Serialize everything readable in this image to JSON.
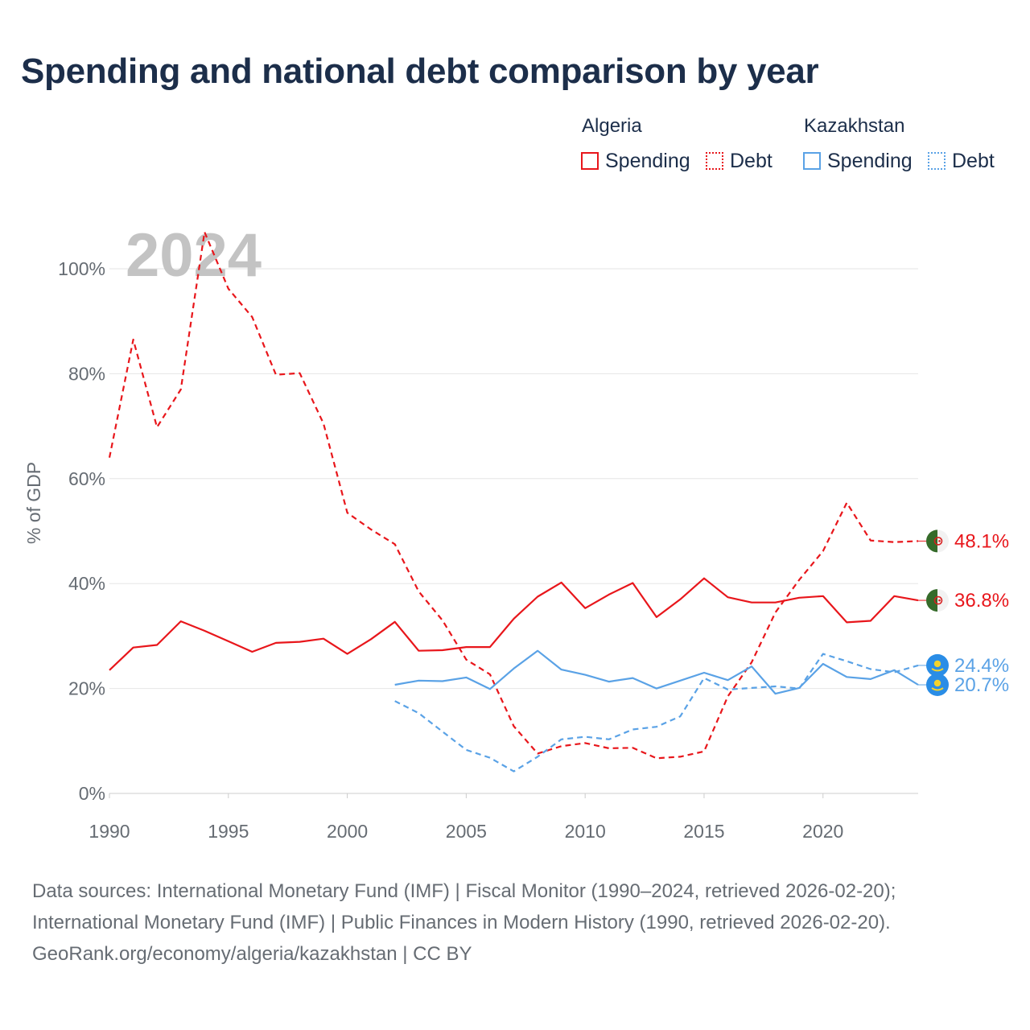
{
  "title": "Spending and national debt comparison by year",
  "legend": {
    "groups": [
      {
        "country": "Algeria",
        "color": "#e8161b",
        "items": [
          {
            "label": "Spending",
            "style": "solid"
          },
          {
            "label": "Debt",
            "style": "dotted"
          }
        ]
      },
      {
        "country": "Kazakhstan",
        "color": "#5aa2e6",
        "items": [
          {
            "label": "Spending",
            "style": "solid"
          },
          {
            "label": "Debt",
            "style": "dotted"
          }
        ]
      }
    ]
  },
  "year_label": "2024",
  "footer": {
    "line1": "Data sources: International Monetary Fund (IMF) | Fiscal Monitor (1990–2024, retrieved 2026-02-20);",
    "line2": "International Monetary Fund (IMF) | Public Finances in Modern History (1990, retrieved 2026-02-20).",
    "line3": "GeoRank.org/economy/algeria/kazakhstan | CC BY"
  },
  "chart_data": {
    "type": "line",
    "title": "Spending and national debt comparison by year",
    "xlabel": "",
    "ylabel": "% of GDP",
    "xlim": [
      1990,
      2024
    ],
    "ylim": [
      0,
      108
    ],
    "x_ticks": [
      1990,
      1995,
      2000,
      2005,
      2010,
      2015,
      2020
    ],
    "y_ticks": [
      0,
      20,
      40,
      60,
      80,
      100
    ],
    "y_tick_labels": [
      "0%",
      "20%",
      "40%",
      "60%",
      "80%",
      "100%"
    ],
    "grid": true,
    "series": [
      {
        "name": "Algeria Spending",
        "country": "Algeria",
        "metric": "Spending",
        "color": "#e8161b",
        "dash": "solid",
        "start_year": 1990,
        "values": [
          23.5,
          27.8,
          28.3,
          32.8,
          31.0,
          29.0,
          27.0,
          28.7,
          28.9,
          29.5,
          26.6,
          29.4,
          32.7,
          27.2,
          27.3,
          27.9,
          27.9,
          33.3,
          37.5,
          40.2,
          35.3,
          37.9,
          40.1,
          33.6,
          37.0,
          41.0,
          37.4,
          36.4,
          36.4,
          37.3,
          37.6,
          32.6,
          32.9,
          37.6,
          36.8
        ],
        "end_label": "36.8%"
      },
      {
        "name": "Algeria Debt",
        "country": "Algeria",
        "metric": "Debt",
        "color": "#e8161b",
        "dash": "dashed",
        "start_year": 1990,
        "values": [
          64.0,
          86.5,
          69.8,
          77.0,
          107.0,
          96.2,
          90.8,
          79.8,
          80.1,
          70.5,
          53.5,
          50.3,
          47.5,
          38.5,
          33.0,
          25.5,
          22.7,
          12.8,
          7.6,
          9.0,
          9.6,
          8.6,
          8.7,
          6.7,
          7.0,
          8.0,
          18.5,
          25.0,
          34.5,
          40.7,
          46.2,
          55.4,
          48.2,
          47.9,
          48.1
        ],
        "end_label": "48.1%"
      },
      {
        "name": "Kazakhstan Spending",
        "country": "Kazakhstan",
        "metric": "Spending",
        "color": "#5aa2e6",
        "dash": "solid",
        "start_year": 2002,
        "values": [
          20.7,
          21.5,
          21.4,
          22.1,
          19.9,
          23.8,
          27.2,
          23.6,
          22.6,
          21.3,
          22.0,
          20.0,
          21.5,
          23.0,
          21.6,
          24.2,
          19.0,
          20.1,
          24.7,
          22.2,
          21.8,
          23.5,
          20.7
        ],
        "end_label": "20.7%"
      },
      {
        "name": "Kazakhstan Debt",
        "country": "Kazakhstan",
        "metric": "Debt",
        "color": "#5aa2e6",
        "dash": "dashed",
        "start_year": 2002,
        "values": [
          17.6,
          15.3,
          11.8,
          8.3,
          6.8,
          4.2,
          7.0,
          10.3,
          10.8,
          10.3,
          12.2,
          12.7,
          14.7,
          22.0,
          19.8,
          20.1,
          20.4,
          20.0,
          26.6,
          25.2,
          23.7,
          23.1,
          24.4
        ],
        "end_label": "24.4%"
      }
    ]
  }
}
